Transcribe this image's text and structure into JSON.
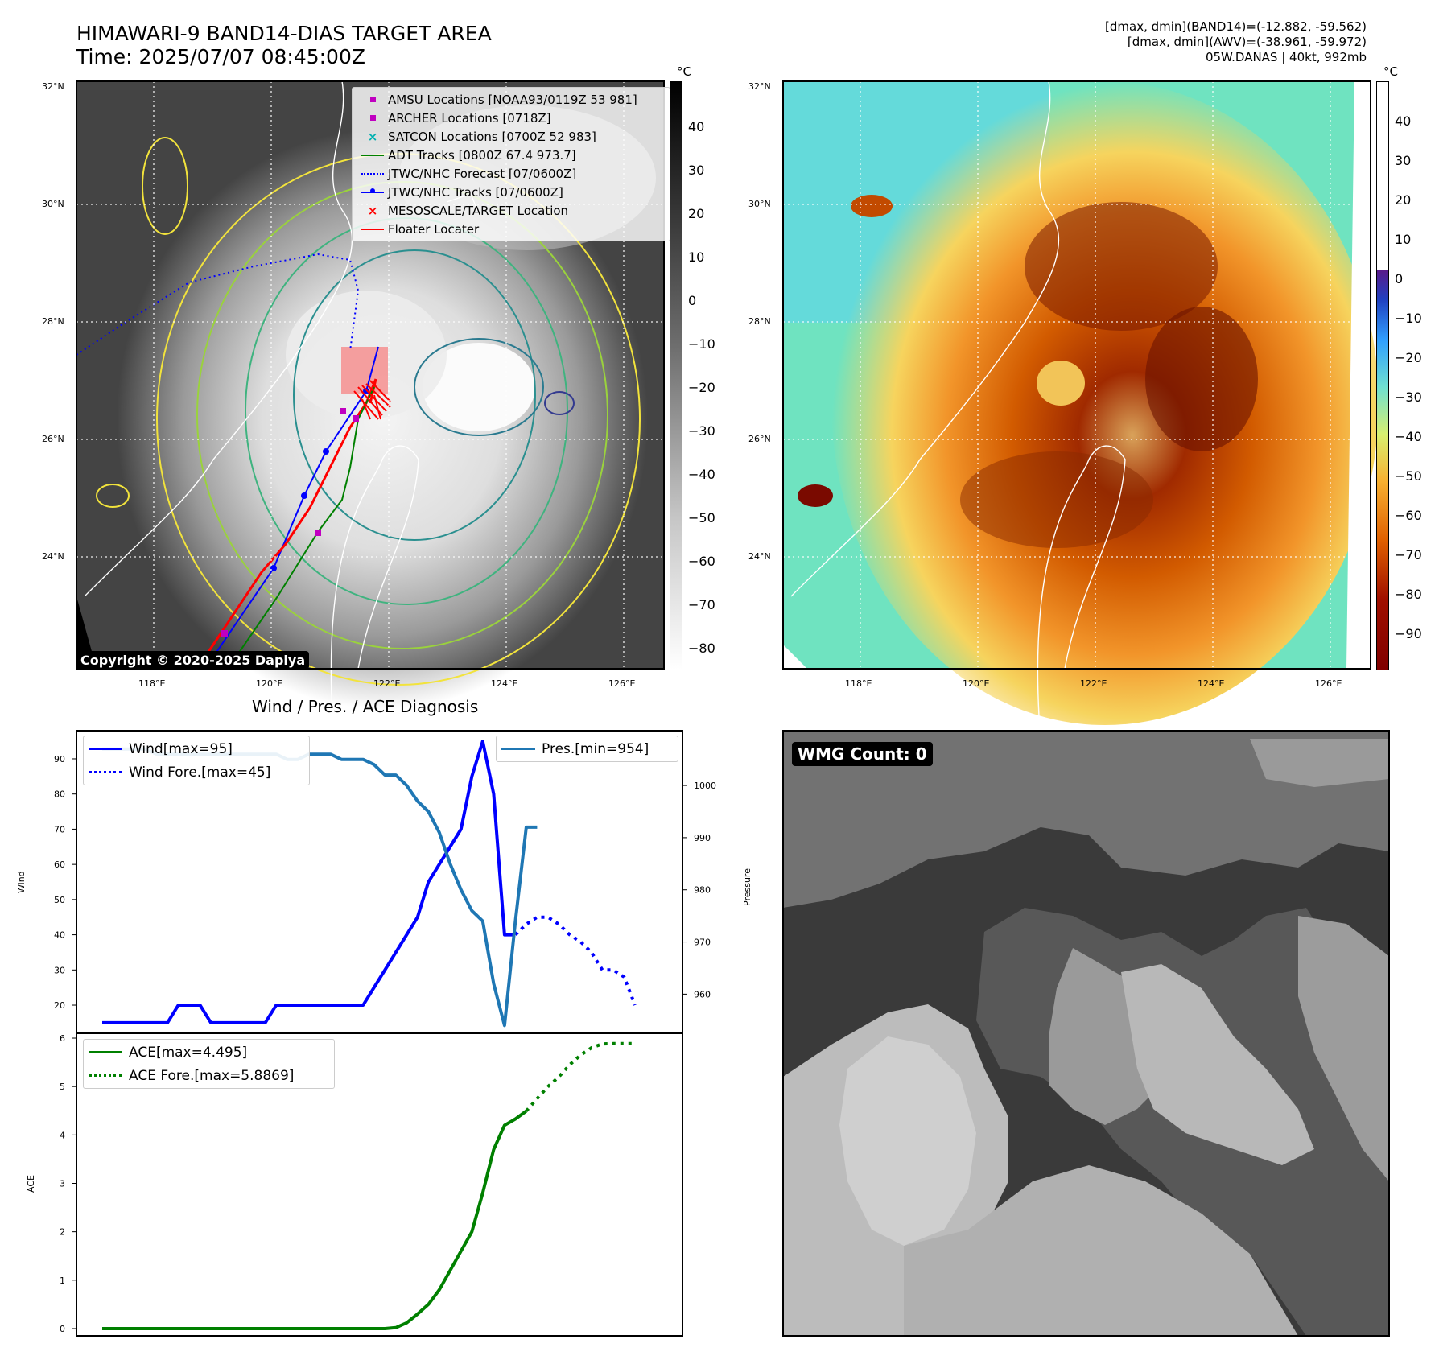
{
  "title": {
    "line1": "HIMAWARI-9 BAND14-DIAS TARGET AREA",
    "line2": "Time: 2025/07/07 08:45:00Z"
  },
  "info": {
    "line1": "[dmax, dmin](BAND14)=(-12.882, -59.562)",
    "line2": "[dmax, dmin](AWV)=(-38.961, -59.972)",
    "line3": "05W.DANAS | 40kt, 992mb"
  },
  "maps": {
    "lat_labels": [
      "32°N",
      "30°N",
      "28°N",
      "26°N",
      "24°N"
    ],
    "lon_labels": [
      "118°E",
      "120°E",
      "122°E",
      "124°E",
      "126°E"
    ],
    "copyright": "Copyright © 2020-2025 Dapiya"
  },
  "colorbar_left": {
    "unit": "°C",
    "ticks": [
      "40",
      "30",
      "20",
      "10",
      "0",
      "−10",
      "−20",
      "−30",
      "−40",
      "−50",
      "−60",
      "−70",
      "−80"
    ]
  },
  "colorbar_right": {
    "unit": "°C",
    "ticks": [
      "40",
      "30",
      "20",
      "10",
      "0",
      "−10",
      "−20",
      "−30",
      "−40",
      "−50",
      "−60",
      "−70",
      "−80",
      "−90"
    ]
  },
  "map_legend": [
    {
      "label": "AMSU Locations [NOAA93/0119Z 53 981]",
      "color": "#c000c0",
      "kind": "square"
    },
    {
      "label": "ARCHER Locations [0718Z]",
      "color": "#c000c0",
      "kind": "square"
    },
    {
      "label": "SATCON Locations [0700Z 52 983]",
      "color": "#00b0b0",
      "kind": "x"
    },
    {
      "label": "ADT Tracks [0800Z 67.4 973.7]",
      "color": "#008000",
      "kind": "line"
    },
    {
      "label": "JTWC/NHC Forecast [07/0600Z]",
      "color": "#0000ff",
      "kind": "dotted"
    },
    {
      "label": "JTWC/NHC Tracks [07/0600Z]",
      "color": "#0000ff",
      "kind": "dotline"
    },
    {
      "label": "MESOSCALE/TARGET Location",
      "color": "#ff0000",
      "kind": "x"
    },
    {
      "label": "Floater Locater",
      "color": "#ff0000",
      "kind": "line"
    }
  ],
  "wmg": {
    "label": "WMG Count: 0"
  },
  "colors": {
    "wind": "#0000ff",
    "pressure": "#1f77b4",
    "ace": "#008000"
  },
  "chart_data": [
    {
      "type": "line",
      "title": "Wind / Pres. / ACE Diagnosis",
      "ylabel": "Wind",
      "ylabel_right": "Pressure",
      "ylim": [
        12,
        98
      ],
      "ylim_right": [
        952.5,
        1010.5
      ],
      "yticks": [
        20,
        30,
        40,
        50,
        60,
        70,
        80,
        90
      ],
      "yticks_right": [
        960,
        970,
        980,
        990,
        1000
      ],
      "grid": false,
      "series": [
        {
          "name": "Wind[max=95]",
          "style": "solid",
          "axis": "left",
          "values": [
            15,
            15,
            15,
            15,
            15,
            15,
            15,
            20,
            20,
            20,
            15,
            15,
            15,
            15,
            15,
            15,
            20,
            20,
            20,
            20,
            20,
            20,
            20,
            20,
            20,
            25,
            30,
            35,
            40,
            45,
            55,
            60,
            65,
            70,
            85,
            95,
            80,
            40,
            40
          ]
        },
        {
          "name": "Wind Fore.[max=45]",
          "style": "dotted",
          "axis": "left",
          "values": [
            null,
            null,
            null,
            null,
            null,
            null,
            null,
            null,
            null,
            null,
            null,
            null,
            null,
            null,
            null,
            null,
            null,
            null,
            null,
            null,
            null,
            null,
            null,
            null,
            null,
            null,
            null,
            null,
            null,
            null,
            null,
            null,
            null,
            null,
            null,
            null,
            null,
            null,
            40,
            43,
            45,
            45,
            43,
            40,
            38,
            35,
            30,
            30,
            28,
            20
          ]
        },
        {
          "name": "Pres.[min=954]",
          "style": "solid",
          "axis": "right",
          "values": [
            1007,
            1007,
            1007,
            1007,
            1007,
            1006,
            1006,
            1006,
            1006,
            1006,
            1006,
            1006,
            1006,
            1006,
            1006,
            1006,
            1006,
            1005,
            1005,
            1006,
            1006,
            1006,
            1005,
            1005,
            1005,
            1004,
            1002,
            1002,
            1000,
            997,
            995,
            991,
            985,
            980,
            976,
            974,
            962,
            954,
            974,
            992,
            992
          ]
        }
      ]
    },
    {
      "type": "line",
      "ylabel": "ACE",
      "ylim": [
        -0.15,
        6.1
      ],
      "yticks": [
        0,
        1,
        2,
        3,
        4,
        5,
        6
      ],
      "grid": false,
      "series": [
        {
          "name": "ACE[max=4.495]",
          "style": "solid",
          "values": [
            0,
            0,
            0,
            0,
            0,
            0,
            0,
            0,
            0,
            0,
            0,
            0,
            0,
            0,
            0,
            0,
            0,
            0,
            0,
            0,
            0,
            0,
            0,
            0,
            0,
            0,
            0,
            0.02,
            0.12,
            0.3,
            0.5,
            0.8,
            1.2,
            1.6,
            2.0,
            2.8,
            3.7,
            4.2,
            4.33,
            4.495
          ]
        },
        {
          "name": "ACE Fore.[max=5.8869]",
          "style": "dotted",
          "values": [
            null,
            null,
            null,
            null,
            null,
            null,
            null,
            null,
            null,
            null,
            null,
            null,
            null,
            null,
            null,
            null,
            null,
            null,
            null,
            null,
            null,
            null,
            null,
            null,
            null,
            null,
            null,
            null,
            null,
            null,
            null,
            null,
            null,
            null,
            null,
            null,
            null,
            null,
            null,
            4.495,
            4.75,
            5.0,
            5.2,
            5.45,
            5.65,
            5.8,
            5.88,
            5.887,
            5.887,
            5.887
          ]
        }
      ]
    }
  ]
}
